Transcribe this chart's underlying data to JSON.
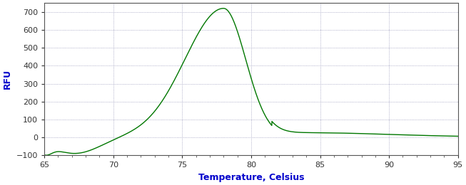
{
  "xlabel": "Temperature, Celsius",
  "ylabel": "RFU",
  "xlim": [
    65,
    95
  ],
  "ylim": [
    -100,
    750
  ],
  "yticks": [
    -100,
    0,
    100,
    200,
    300,
    400,
    500,
    600,
    700
  ],
  "xticks": [
    65,
    70,
    75,
    80,
    85,
    90,
    95
  ],
  "line_color": "#007700",
  "background_color": "#ffffff",
  "grid_color": "#9999bb",
  "label_color": "#0000cc",
  "tick_color": "#333333",
  "spine_color": "#555555",
  "peak_x": 78.0,
  "peak_y": 720,
  "trough_x": 67.2,
  "trough_y": -90,
  "plateau_y": 20,
  "plateau_x": 84
}
